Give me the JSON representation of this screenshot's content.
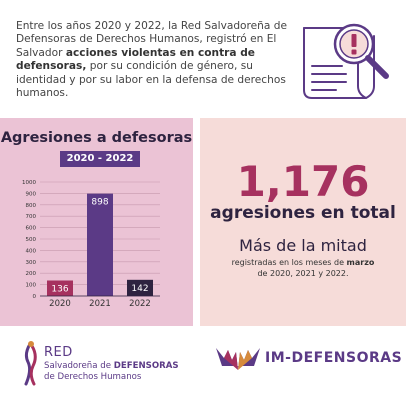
{
  "intro": {
    "pre": "Entre los años 2020 y 2022, la Red Salvadoreña de Defensoras de Derechos Humanos, registró en El Salvador ",
    "bold": "acciones violentas en contra de defensoras,",
    "post": " por su condición de género, su identidad y por su labor en la defensa de derechos humanos."
  },
  "chart_data": {
    "type": "bar",
    "title": "Agresiones a defesoras",
    "subtitle": "2020 - 2022",
    "categories": [
      "2020",
      "2021",
      "2022"
    ],
    "values": [
      136,
      898,
      142
    ],
    "data_labels": [
      "136",
      "898",
      "142"
    ],
    "yticks": [
      0,
      100,
      200,
      300,
      400,
      500,
      600,
      700,
      800,
      900,
      1000
    ],
    "ylim": [
      0,
      1000
    ],
    "grid": true,
    "bar_colors": [
      "#a6315f",
      "#5b3a86",
      "#2e2340"
    ]
  },
  "summary": {
    "total": "1,176",
    "total_label": "agresiones en total",
    "half_title": "Más de la mitad",
    "half_sub_pre": "registradas en los meses de ",
    "half_sub_bold": "marzo",
    "half_sub_post": " de 2020, 2021 y 2022."
  },
  "logos": {
    "red_name": "RED",
    "red_line1_pre": "Salvadoreña de ",
    "red_line1_bold": "DEFENSORAS",
    "red_line2": "de Derechos Humanos",
    "im_name": "IM-DEFENSORAS"
  },
  "icons": {
    "document": "document-alert-icon",
    "magnifier": "magnifier-icon",
    "red_logo": "red-figure-logo",
    "im_logo": "im-hands-logo"
  },
  "colors": {
    "purple": "#5b3a86",
    "magenta": "#a6315f",
    "dark": "#2e2340",
    "pink_panel": "#ebc3d5",
    "peach_panel": "#f6dcd9"
  }
}
